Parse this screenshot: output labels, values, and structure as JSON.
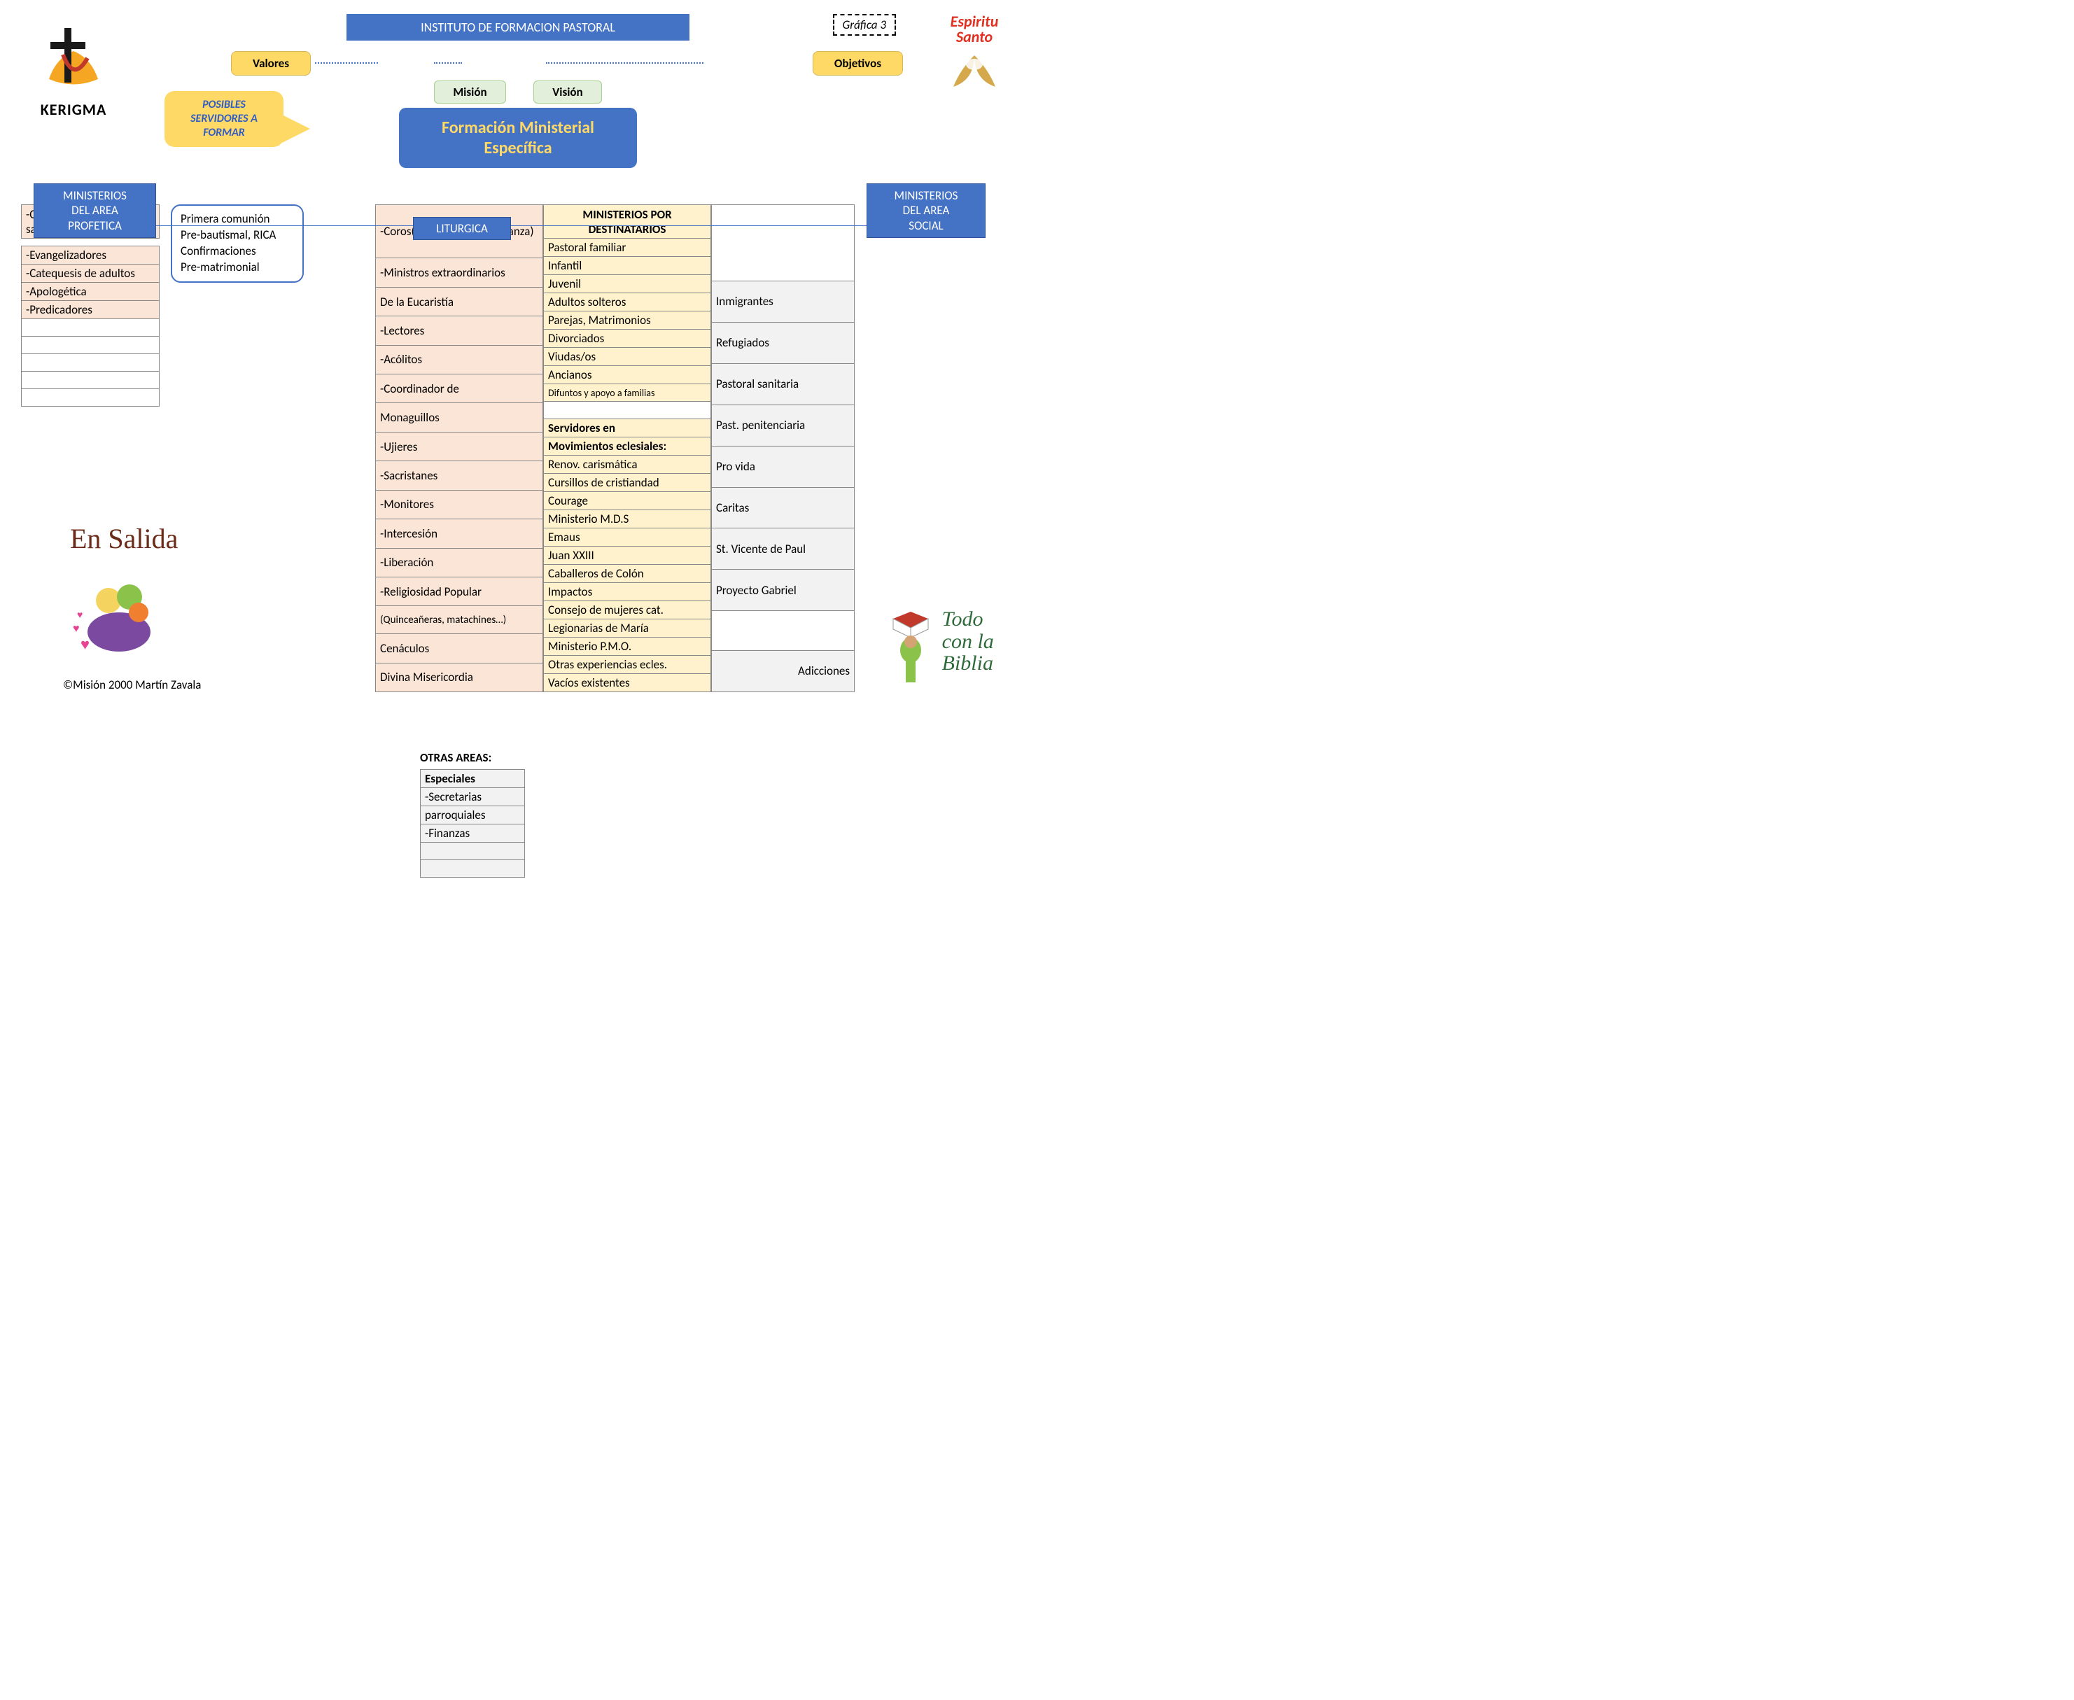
{
  "title": "INSTITUTO DE FORMACION PASTORAL",
  "grafica": "Gráfica 3",
  "logos": {
    "kerigma": "KERIGMA",
    "espiritu": "Espiritu Santo",
    "ensalida": "En Salida",
    "todobiblia_l1": "Todo",
    "todobiblia_l2": "con la",
    "todobiblia_l3": "Biblia"
  },
  "pills": {
    "valores": "Valores",
    "objetivos": "Objetivos",
    "mision": "Misión",
    "vision": "Visión"
  },
  "callout_l1": "POSIBLES",
  "callout_l2": "SERVIDORES A",
  "callout_l3": "FORMAR",
  "center_l1": "Formación  Ministerial",
  "center_l2": "Específica",
  "headers": {
    "profetica_l1": "MINISTERIOS",
    "profetica_l2": "DEL AREA",
    "profetica_l3": "PROFETICA",
    "liturgica": "LITURGICA",
    "social_l1": "MINISTERIOS",
    "social_l2": "DEL AREA",
    "social_l3": "SOCIAL"
  },
  "profetica_top": [
    "-Catequesis pre-sacramental"
  ],
  "profetica_rest": [
    "-Evangelizadores",
    "-Catequesis de adultos",
    "-Apologética",
    "-Predicadores",
    "",
    "",
    "",
    "",
    ""
  ],
  "notebox": [
    "Primera comunión",
    "Pre-bautismal, RICA",
    "Confirmaciones",
    "Pre-matrimonial"
  ],
  "liturgica": [
    "-Coros(Ministerios de Alabanza)",
    "-Ministros extraordinarios",
    "De la Eucaristía",
    "-Lectores",
    "-Acólitos",
    "-Coordinador de",
    "Monaguillos",
    "-Ujieres",
    "-Sacristanes",
    "-Monitores",
    "-Intercesión",
    "-Liberación",
    "-Religiosidad Popular",
    "(Quinceañeras, matachines…)",
    "Cenáculos",
    "Divina Misericordia"
  ],
  "dest_header": "MINISTERIOS POR DESTINATARIOS",
  "destinatarios": [
    "Pastoral familiar",
    "Infantil",
    "Juvenil",
    "Adultos solteros",
    "Parejas, Matrimonios",
    "Divorciados",
    "Viudas/os",
    "Ancianos",
    "Difuntos y apoyo a familias",
    ""
  ],
  "servidores_hdr1": "Servidores en",
  "servidores_hdr2": "Movimientos eclesiales:",
  "movimientos": [
    "Renov. carismática",
    "Cursillos de cristiandad",
    "Courage",
    "Ministerio M.D.S",
    "Emaus",
    "Juan XXIII",
    "Caballeros de Colón",
    "Impactos",
    "Consejo de mujeres cat.",
    "Legionarias de María",
    "Ministerio P.M.O.",
    "Otras experiencias ecles.",
    "Vacíos existentes"
  ],
  "social": [
    "",
    "Inmigrantes",
    "Refugiados",
    "Pastoral sanitaria",
    "Past. penitenciaria",
    "Pro vida",
    "Caritas",
    "St. Vicente de Paul",
    "Proyecto Gabriel",
    "",
    "Adicciones"
  ],
  "otras_title": "OTRAS AREAS:",
  "otras": [
    "Especiales",
    "-Secretarias",
    "parroquiales",
    "-Finanzas",
    "",
    ""
  ],
  "copyright": "©Misión 2000 Martín Zavala",
  "colors": {
    "blue": "#4472c4",
    "yellow": "#ffd966",
    "peach": "#fbe5d6",
    "cream": "#fff2cc",
    "grey": "#f2f2f2",
    "green": "#e2efda"
  }
}
